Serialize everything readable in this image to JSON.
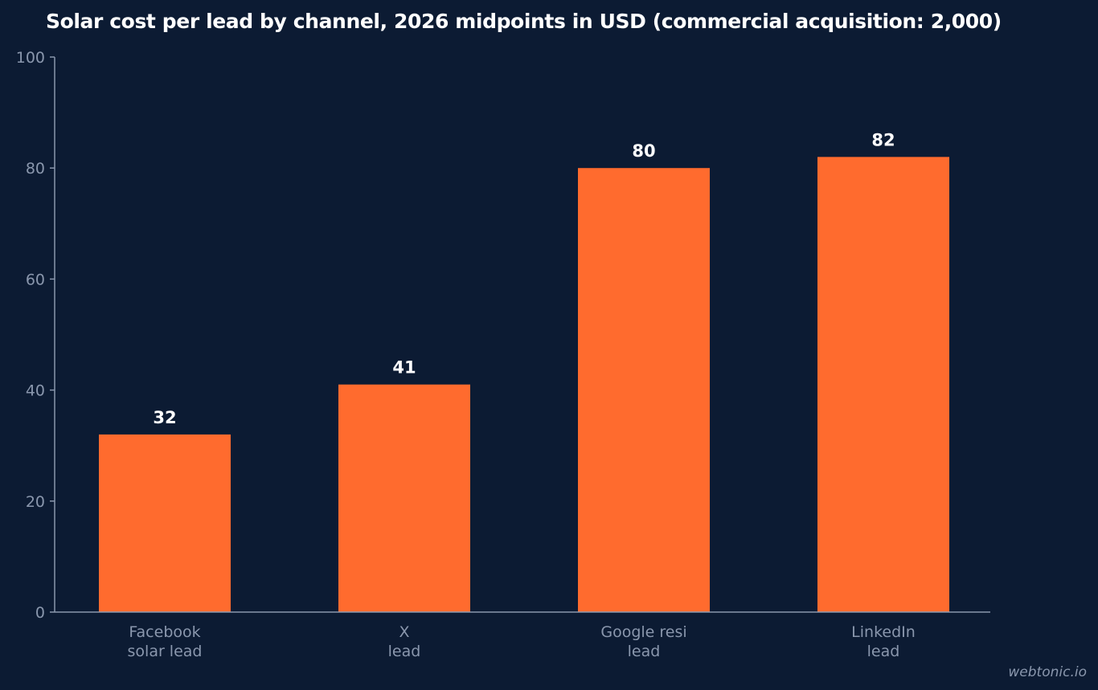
{
  "chart_data": {
    "type": "bar",
    "title": "Solar cost per lead by channel, 2026 midpoints in USD (commercial acquisition: 2,000)",
    "xlabel": "",
    "ylabel": "",
    "categories": [
      [
        "Facebook",
        "solar lead"
      ],
      [
        "X",
        "lead"
      ],
      [
        "Google resi",
        "lead"
      ],
      [
        "LinkedIn",
        "lead"
      ]
    ],
    "values": [
      32,
      41,
      80,
      82
    ],
    "value_labels": [
      "32",
      "41",
      "80",
      "82"
    ],
    "ylim": [
      0,
      100
    ],
    "yticks": [
      0,
      20,
      40,
      60,
      80,
      100
    ],
    "grid": false,
    "legend": "none"
  },
  "colors": {
    "background": "#0c1b33",
    "bar": "#ff6b2e",
    "axis": "#8a97ad",
    "tick_label": "#8a97ad",
    "value_label": "#ffffff",
    "title": "#ffffff"
  },
  "watermark": "webtonic.io"
}
